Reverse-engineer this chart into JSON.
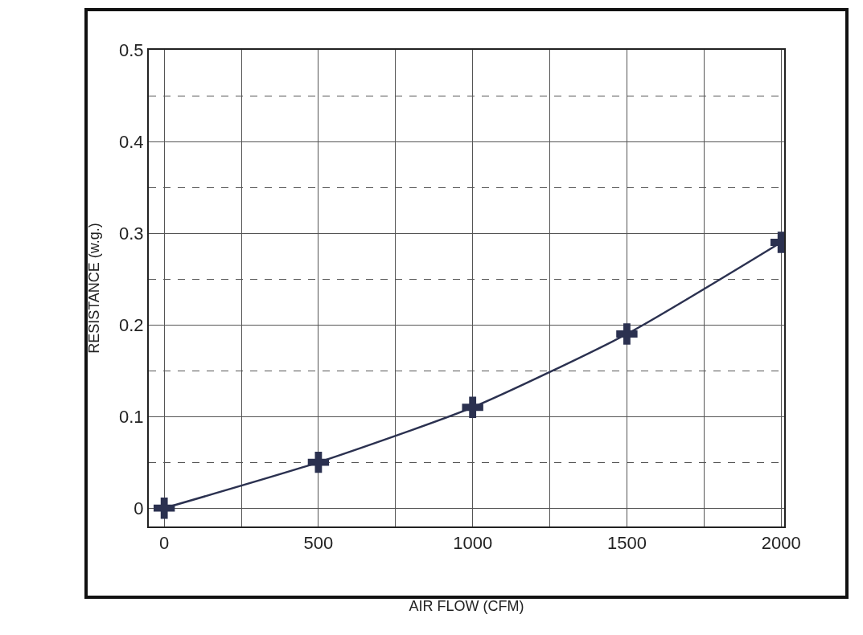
{
  "chart_data": {
    "type": "line",
    "xlabel": "AIR FLOW (CFM)",
    "ylabel": "RESISTANCE (w.g.)",
    "x": [
      0,
      500,
      1000,
      1500,
      2000
    ],
    "series": [
      {
        "color": "#2b3150",
        "values": [
          0,
          0.05,
          0.11,
          0.19,
          0.29
        ]
      }
    ],
    "xlim": [
      -50,
      2010
    ],
    "ylim": [
      -0.02,
      0.5
    ],
    "xticks": [
      0,
      {
        "value": 250,
        "label": null
      },
      500,
      {
        "value": 750,
        "label": null
      },
      1000,
      {
        "value": 1250,
        "label": null
      },
      1500,
      {
        "value": 1750,
        "label": null
      },
      2000
    ],
    "yticks": [
      0,
      {
        "value": 0.05,
        "label": null
      },
      0.1,
      {
        "value": 0.15,
        "label": null
      },
      0.2,
      {
        "value": 0.25,
        "label": null
      },
      0.3,
      {
        "value": 0.35,
        "label": null
      },
      0.4,
      {
        "value": 0.45,
        "label": null
      },
      0.5
    ],
    "grid": true,
    "marker": "cross",
    "line_style": "solid"
  }
}
